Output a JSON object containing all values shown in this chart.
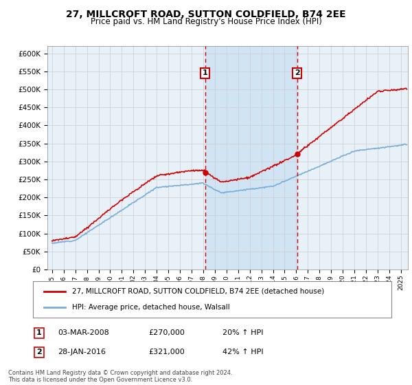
{
  "title": "27, MILLCROFT ROAD, SUTTON COLDFIELD, B74 2EE",
  "subtitle": "Price paid vs. HM Land Registry's House Price Index (HPI)",
  "legend_line1": "27, MILLCROFT ROAD, SUTTON COLDFIELD, B74 2EE (detached house)",
  "legend_line2": "HPI: Average price, detached house, Walsall",
  "sale1_date": "03-MAR-2008",
  "sale1_price": 270000,
  "sale1_hpi": "20% ↑ HPI",
  "sale1_label": "1",
  "sale1_year": 2008.17,
  "sale2_date": "28-JAN-2016",
  "sale2_price": 321000,
  "sale2_hpi": "42% ↑ HPI",
  "sale2_label": "2",
  "sale2_year": 2016.07,
  "footnote": "Contains HM Land Registry data © Crown copyright and database right 2024.\nThis data is licensed under the Open Government Licence v3.0.",
  "ylim": [
    0,
    620000
  ],
  "yticks": [
    0,
    50000,
    100000,
    150000,
    200000,
    250000,
    300000,
    350000,
    400000,
    450000,
    500000,
    550000,
    600000
  ],
  "year_start": 1995,
  "year_end": 2025,
  "bg_color": "#ffffff",
  "plot_bg": "#e8f0f8",
  "grid_color": "#cccccc",
  "red_color": "#cc0000",
  "blue_color": "#7aacda",
  "shade_color": "#d0e4f4"
}
